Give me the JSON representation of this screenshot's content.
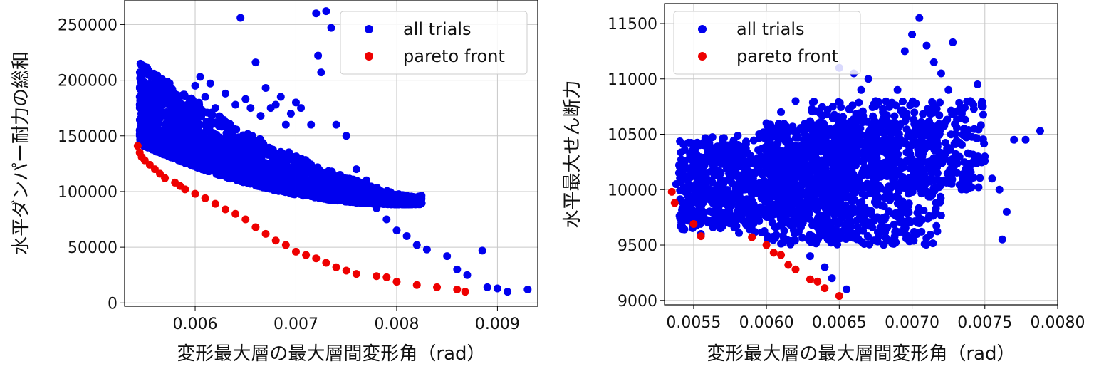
{
  "chart_data": [
    {
      "type": "scatter",
      "xlabel": "変形最大層の最大層間変形角（rad）",
      "ylabel": "水平ダンパー耐力の総和",
      "xlim": [
        0.0053,
        0.0094
      ],
      "ylim": [
        -3000,
        272000
      ],
      "xticks": [
        0.006,
        0.007,
        0.008,
        0.009
      ],
      "xtick_labels": [
        "0.006",
        "0.007",
        "0.008",
        "0.009"
      ],
      "yticks": [
        0,
        50000,
        100000,
        150000,
        200000,
        250000
      ],
      "ytick_labels": [
        "0",
        "50000",
        "100000",
        "150000",
        "200000",
        "250000"
      ],
      "grid": true,
      "legend": "top-right",
      "series": [
        {
          "name": "all trials",
          "color": "#0000ee",
          "points": [
            [
              0.00545,
              155000
            ],
            [
              0.00548,
              162000
            ],
            [
              0.0055,
              168000
            ],
            [
              0.00555,
              150000
            ],
            [
              0.0056,
              170000
            ],
            [
              0.00565,
              178000
            ],
            [
              0.0057,
              160000
            ],
            [
              0.00575,
              166000
            ],
            [
              0.0058,
              157000
            ],
            [
              0.0059,
              172000
            ],
            [
              0.00595,
              180000
            ],
            [
              0.006,
              195000
            ],
            [
              0.00605,
              203000
            ],
            [
              0.0061,
              185000
            ],
            [
              0.00615,
              197000
            ],
            [
              0.0062,
              175000
            ],
            [
              0.00625,
              165000
            ],
            [
              0.0063,
              188000
            ],
            [
              0.0064,
              178000
            ],
            [
              0.00645,
              256000
            ],
            [
              0.0065,
              183000
            ],
            [
              0.00655,
              175000
            ],
            [
              0.0066,
              216000
            ],
            [
              0.00665,
              168000
            ],
            [
              0.0067,
              193000
            ],
            [
              0.00675,
              175000
            ],
            [
              0.0068,
              178000
            ],
            [
              0.00685,
              185000
            ],
            [
              0.0069,
              160000
            ],
            [
              0.00695,
              170000
            ],
            [
              0.007,
              180000
            ],
            [
              0.00705,
              175000
            ],
            [
              0.00715,
              160000
            ],
            [
              0.0072,
              260000
            ],
            [
              0.00722,
              222000
            ],
            [
              0.00725,
              207000
            ],
            [
              0.0073,
              262000
            ],
            [
              0.00735,
              247000
            ],
            [
              0.0074,
              160000
            ],
            [
              0.0075,
              150000
            ],
            [
              0.0076,
              120000
            ],
            [
              0.0077,
              110000
            ],
            [
              0.0078,
              85000
            ],
            [
              0.0079,
              75000
            ],
            [
              0.008,
              65000
            ],
            [
              0.0081,
              60000
            ],
            [
              0.0082,
              52000
            ],
            [
              0.0083,
              48000
            ],
            [
              0.0085,
              42000
            ],
            [
              0.0086,
              30000
            ],
            [
              0.0087,
              25000
            ],
            [
              0.00885,
              47000
            ],
            [
              0.0089,
              14000
            ],
            [
              0.009,
              13000
            ],
            [
              0.0091,
              10000
            ],
            [
              0.0093,
              12000
            ]
          ]
        },
        {
          "name": "pareto front",
          "color": "#ee0000",
          "points": [
            [
              0.00543,
              141000
            ],
            [
              0.00545,
              135000
            ],
            [
              0.00547,
              131000
            ],
            [
              0.0055,
              128000
            ],
            [
              0.00555,
              124000
            ],
            [
              0.0056,
              120000
            ],
            [
              0.00565,
              116000
            ],
            [
              0.0057,
              112000
            ],
            [
              0.0058,
              108000
            ],
            [
              0.00585,
              105000
            ],
            [
              0.0059,
              102000
            ],
            [
              0.006,
              98000
            ],
            [
              0.0061,
              94000
            ],
            [
              0.0062,
              89000
            ],
            [
              0.0063,
              84000
            ],
            [
              0.0064,
              80000
            ],
            [
              0.0065,
              75000
            ],
            [
              0.0066,
              68000
            ],
            [
              0.0067,
              62000
            ],
            [
              0.0068,
              56000
            ],
            [
              0.0069,
              52000
            ],
            [
              0.007,
              46000
            ],
            [
              0.0071,
              43000
            ],
            [
              0.0072,
              40000
            ],
            [
              0.0073,
              36000
            ],
            [
              0.0074,
              32000
            ],
            [
              0.0075,
              29000
            ],
            [
              0.0076,
              26000
            ],
            [
              0.0078,
              24000
            ],
            [
              0.0079,
              23000
            ],
            [
              0.008,
              19000
            ],
            [
              0.0082,
              16000
            ],
            [
              0.0084,
              14000
            ],
            [
              0.0086,
              12000
            ],
            [
              0.00868,
              10000
            ]
          ]
        }
      ]
    },
    {
      "type": "scatter",
      "xlabel": "変形最大層の最大層間変形角（rad）",
      "ylabel": "水平最大せん断力",
      "xlim": [
        0.0053,
        0.008
      ],
      "ylim": [
        8960,
        11680
      ],
      "xticks": [
        0.0055,
        0.006,
        0.0065,
        0.007,
        0.0075,
        0.008
      ],
      "xtick_labels": [
        "0.0055",
        "0.0060",
        "0.0065",
        "0.0070",
        "0.0075",
        "0.0080"
      ],
      "yticks": [
        9000,
        9500,
        10000,
        10500,
        11000,
        11500
      ],
      "ytick_labels": [
        "9000",
        "9500",
        "10000",
        "10500",
        "11000",
        "11500"
      ],
      "grid": true,
      "legend": "top-left",
      "series": [
        {
          "name": "all trials",
          "color": "#0000ee",
          "points": [
            [
              0.00538,
              10050
            ],
            [
              0.0054,
              10150
            ],
            [
              0.00545,
              10200
            ],
            [
              0.0055,
              10000
            ],
            [
              0.00555,
              9600
            ],
            [
              0.00565,
              10000
            ],
            [
              0.0057,
              10300
            ],
            [
              0.00575,
              10100
            ],
            [
              0.0058,
              10400
            ],
            [
              0.00585,
              10200
            ],
            [
              0.0059,
              9900
            ],
            [
              0.00595,
              10500
            ],
            [
              0.006,
              10600
            ],
            [
              0.00605,
              10300
            ],
            [
              0.0061,
              10700
            ],
            [
              0.00615,
              10400
            ],
            [
              0.0062,
              10800
            ],
            [
              0.00625,
              9700
            ],
            [
              0.0063,
              9400
            ],
            [
              0.00635,
              10500
            ],
            [
              0.0064,
              9300
            ],
            [
              0.00645,
              9200
            ],
            [
              0.0065,
              11100
            ],
            [
              0.00655,
              9100
            ],
            [
              0.0066,
              11050
            ],
            [
              0.00665,
              10900
            ],
            [
              0.0067,
              11000
            ],
            [
              0.00675,
              10800
            ],
            [
              0.0068,
              10700
            ],
            [
              0.00685,
              10600
            ],
            [
              0.0069,
              10900
            ],
            [
              0.00695,
              11250
            ],
            [
              0.007,
              11400
            ],
            [
              0.00705,
              11550
            ],
            [
              0.0071,
              11300
            ],
            [
              0.00715,
              11150
            ],
            [
              0.0072,
              11050
            ],
            [
              0.00725,
              10900
            ],
            [
              0.00728,
              11330
            ],
            [
              0.0073,
              10700
            ],
            [
              0.00735,
              10500
            ],
            [
              0.0074,
              10800
            ],
            [
              0.00745,
              10950
            ],
            [
              0.0075,
              10300
            ],
            [
              0.00755,
              10100
            ],
            [
              0.0076,
              10000
            ],
            [
              0.00762,
              9550
            ],
            [
              0.00765,
              9800
            ],
            [
              0.0077,
              10450
            ],
            [
              0.00778,
              10450
            ],
            [
              0.00788,
              10530
            ]
          ]
        },
        {
          "name": "pareto front",
          "color": "#ee0000",
          "points": [
            [
              0.00535,
              9980
            ],
            [
              0.00537,
              9880
            ],
            [
              0.0055,
              9690
            ],
            [
              0.00555,
              9580
            ],
            [
              0.0059,
              9570
            ],
            [
              0.006,
              9500
            ],
            [
              0.00605,
              9430
            ],
            [
              0.0061,
              9410
            ],
            [
              0.00615,
              9320
            ],
            [
              0.0062,
              9280
            ],
            [
              0.0063,
              9190
            ],
            [
              0.00635,
              9170
            ],
            [
              0.0064,
              9110
            ],
            [
              0.0065,
              9040
            ]
          ]
        }
      ]
    }
  ]
}
